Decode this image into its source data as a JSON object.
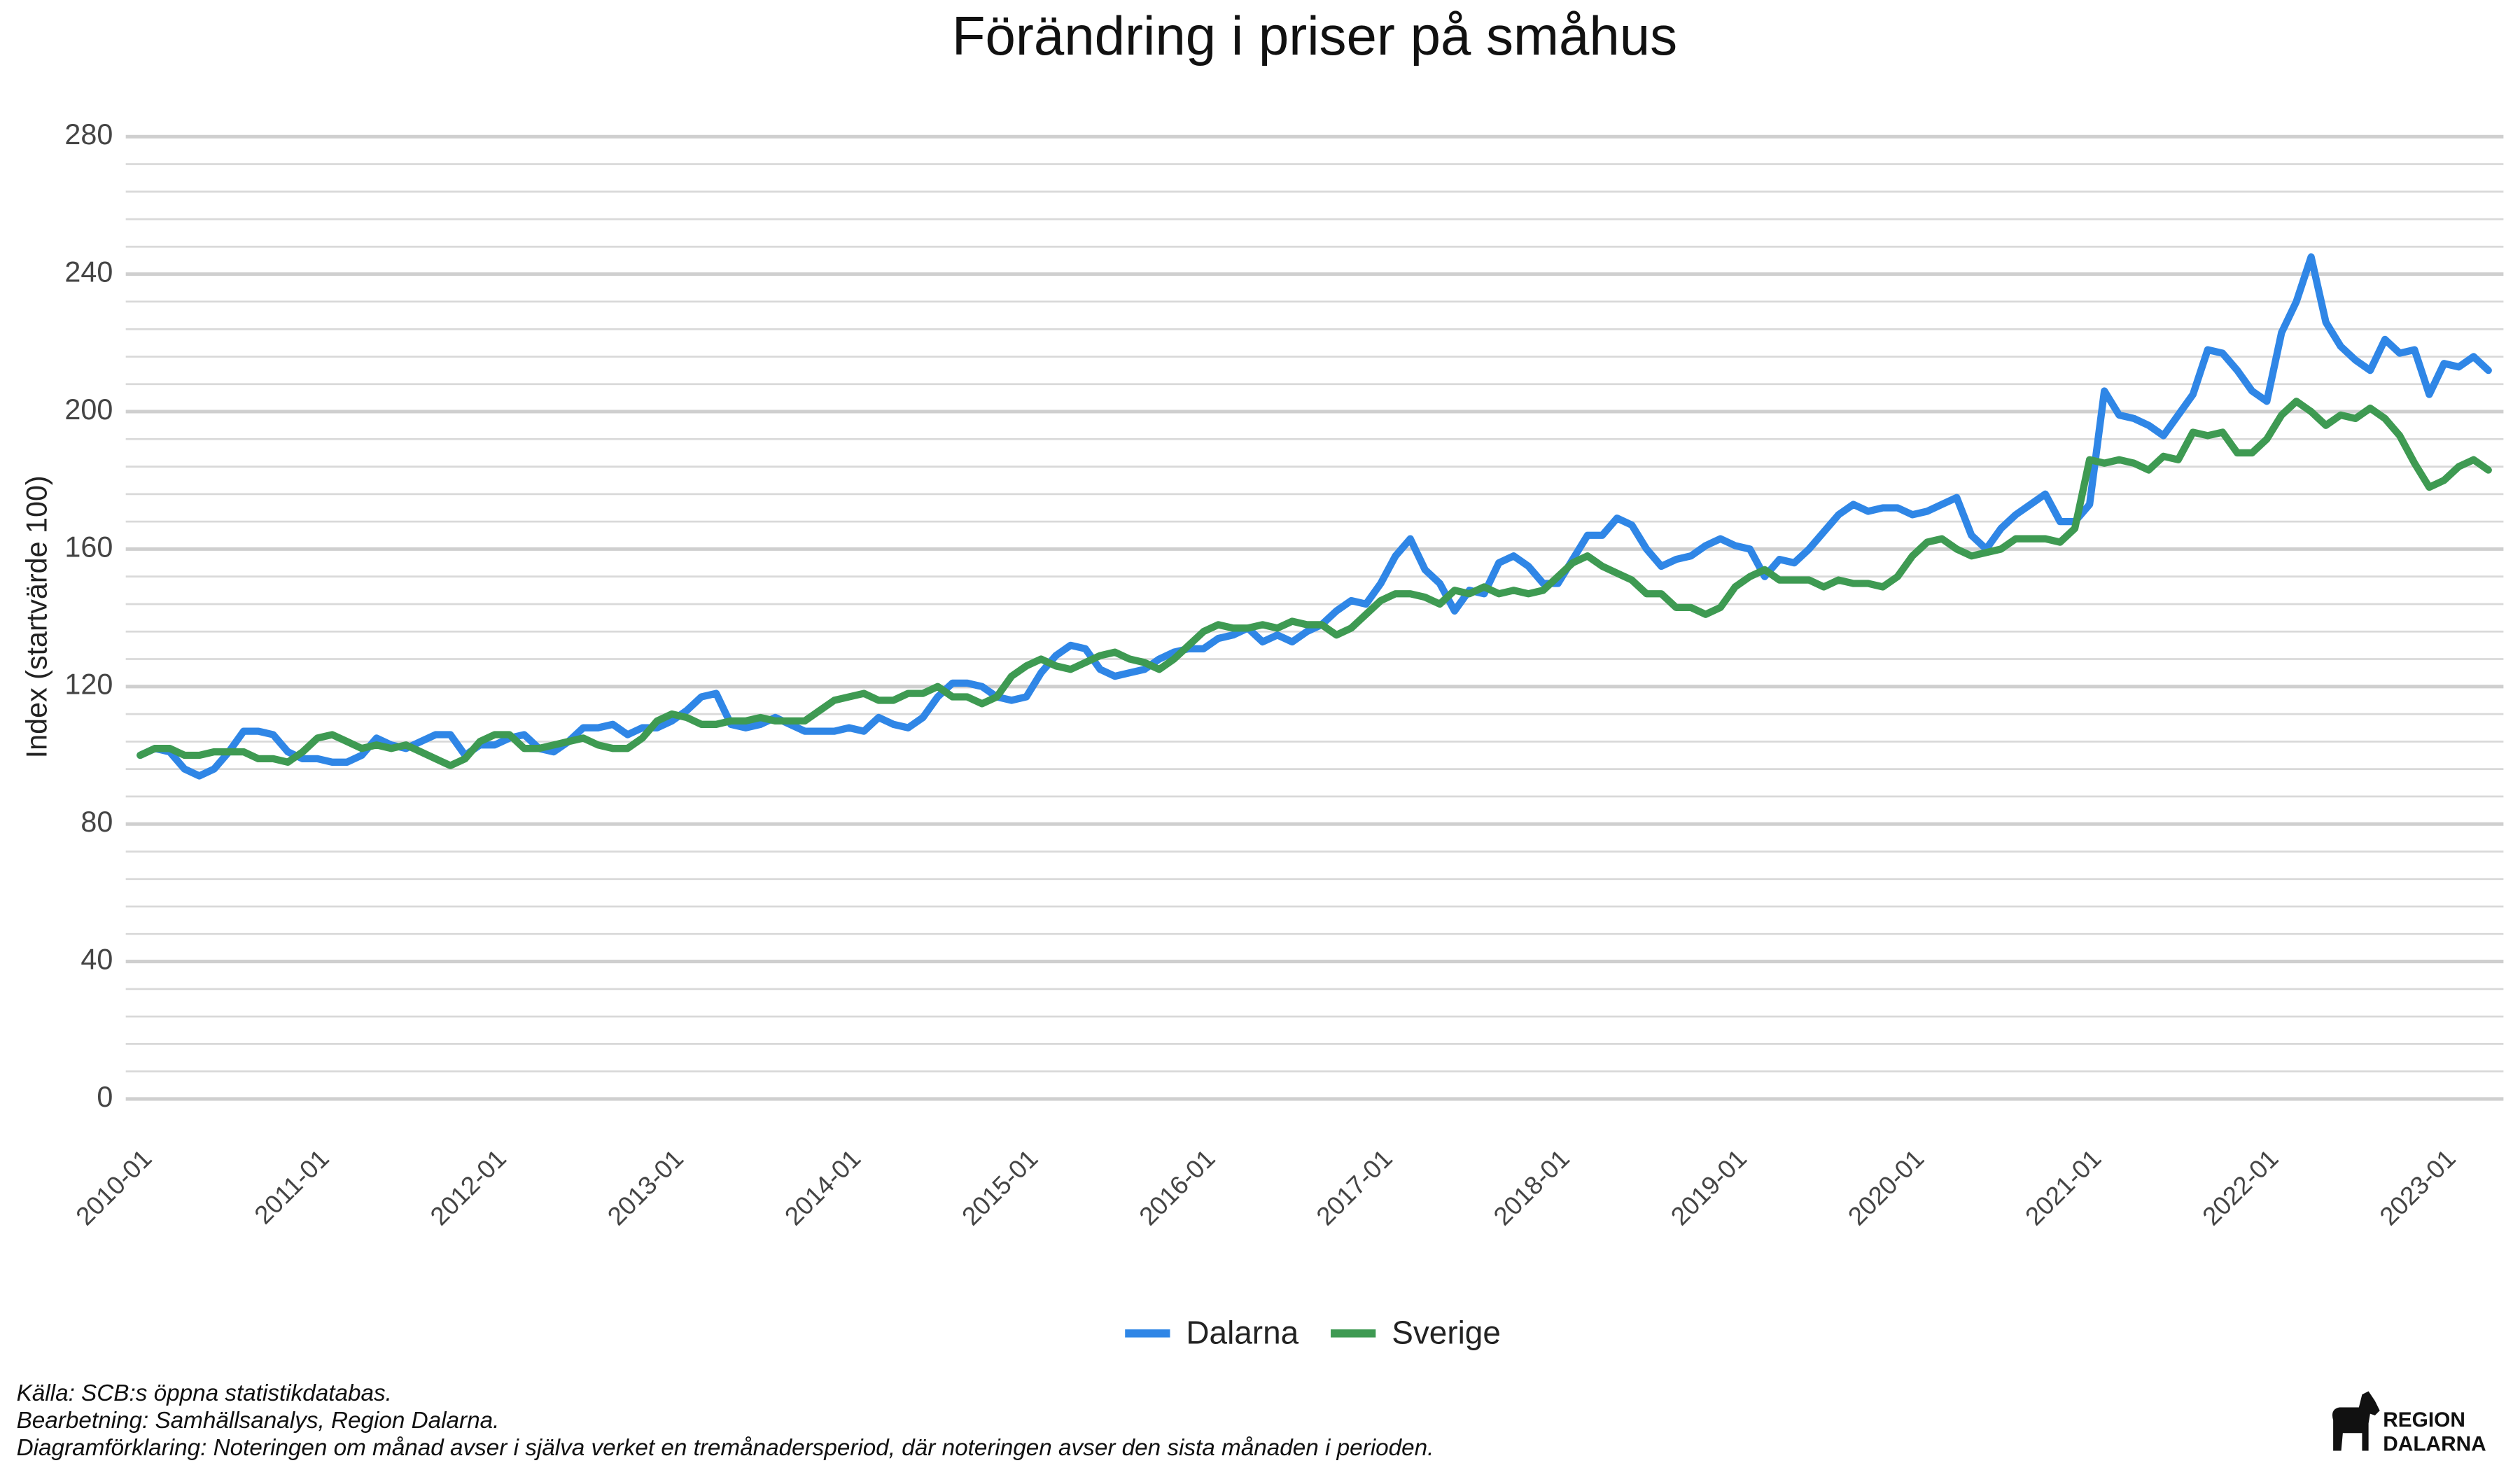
{
  "chart_data": {
    "type": "line",
    "title": "Förändring i priser på småhus",
    "y_label": "Index (startvärde 100)",
    "categories": [
      "2010-01",
      null,
      null,
      null,
      null,
      null,
      null,
      null,
      null,
      null,
      null,
      null,
      "2011-01",
      null,
      null,
      null,
      null,
      null,
      null,
      null,
      null,
      null,
      null,
      null,
      "2012-01",
      null,
      null,
      null,
      null,
      null,
      null,
      null,
      null,
      null,
      null,
      null,
      "2013-01",
      null,
      null,
      null,
      null,
      null,
      null,
      null,
      null,
      null,
      null,
      null,
      "2014-01",
      null,
      null,
      null,
      null,
      null,
      null,
      null,
      null,
      null,
      null,
      null,
      "2015-01",
      null,
      null,
      null,
      null,
      null,
      null,
      null,
      null,
      null,
      null,
      null,
      "2016-01",
      null,
      null,
      null,
      null,
      null,
      null,
      null,
      null,
      null,
      null,
      null,
      "2017-01",
      null,
      null,
      null,
      null,
      null,
      null,
      null,
      null,
      null,
      null,
      null,
      "2018-01",
      null,
      null,
      null,
      null,
      null,
      null,
      null,
      null,
      null,
      null,
      null,
      "2019-01",
      null,
      null,
      null,
      null,
      null,
      null,
      null,
      null,
      null,
      null,
      null,
      "2020-01",
      null,
      null,
      null,
      null,
      null,
      null,
      null,
      null,
      null,
      null,
      null,
      "2021-01",
      null,
      null,
      null,
      null,
      null,
      null,
      null,
      null,
      null,
      null,
      null,
      "2022-01",
      null,
      null,
      null,
      null,
      null,
      null,
      null,
      null,
      null,
      null,
      null,
      "2023-01",
      null,
      null,
      null
    ],
    "series": [
      {
        "name": "Dalarna",
        "color": "#2f86e6",
        "values": [
          100,
          102,
          101,
          96,
          94,
          96,
          101,
          107,
          107,
          106,
          101,
          99,
          99,
          98,
          98,
          100,
          105,
          103,
          102,
          104,
          106,
          106,
          100,
          103,
          103,
          105,
          106,
          102,
          101,
          104,
          108,
          108,
          109,
          106,
          108,
          108,
          110,
          113,
          117,
          118,
          109,
          108,
          109,
          111,
          109,
          107,
          107,
          107,
          108,
          107,
          111,
          109,
          108,
          111,
          117,
          121,
          121,
          120,
          117,
          116,
          117,
          124,
          129,
          132,
          131,
          125,
          123,
          124,
          125,
          128,
          130,
          131,
          131,
          134,
          135,
          137,
          133,
          135,
          133,
          136,
          138,
          142,
          145,
          144,
          150,
          158,
          163,
          154,
          150,
          142,
          148,
          147,
          156,
          158,
          155,
          150,
          150,
          157,
          164,
          164,
          169,
          167,
          160,
          155,
          157,
          158,
          161,
          163,
          161,
          160,
          152,
          157,
          156,
          160,
          165,
          170,
          173,
          171,
          172,
          172,
          170,
          171,
          173,
          175,
          164,
          160,
          166,
          170,
          173,
          176,
          168,
          168,
          173,
          206,
          199,
          198,
          196,
          193,
          199,
          205,
          218,
          217,
          212,
          206,
          203,
          223,
          232,
          245,
          226,
          219,
          215,
          212,
          221,
          217,
          218,
          205,
          214,
          213,
          216,
          212
        ]
      },
      {
        "name": "Sverige",
        "color": "#3e9a52",
        "values": [
          100,
          102,
          102,
          100,
          100,
          101,
          101,
          101,
          99,
          99,
          98,
          101,
          105,
          106,
          104,
          102,
          103,
          102,
          103,
          101,
          99,
          97,
          99,
          104,
          106,
          106,
          102,
          102,
          103,
          104,
          105,
          103,
          102,
          102,
          105,
          110,
          112,
          111,
          109,
          109,
          110,
          110,
          111,
          110,
          110,
          110,
          113,
          116,
          117,
          118,
          116,
          116,
          118,
          118,
          120,
          117,
          117,
          115,
          117,
          123,
          126,
          128,
          126,
          125,
          127,
          129,
          130,
          128,
          127,
          125,
          128,
          132,
          136,
          138,
          137,
          137,
          138,
          137,
          139,
          138,
          138,
          135,
          137,
          141,
          145,
          147,
          147,
          146,
          144,
          148,
          147,
          149,
          147,
          148,
          147,
          148,
          152,
          156,
          158,
          155,
          153,
          151,
          147,
          147,
          143,
          143,
          141,
          143,
          149,
          152,
          154,
          151,
          151,
          151,
          149,
          151,
          150,
          150,
          149,
          152,
          158,
          162,
          163,
          160,
          158,
          159,
          160,
          163,
          163,
          163,
          162,
          166,
          186,
          185,
          186,
          185,
          183,
          187,
          186,
          194,
          193,
          194,
          188,
          188,
          192,
          199,
          203,
          200,
          196,
          199,
          198,
          201,
          198,
          193,
          185,
          178,
          180,
          184,
          186,
          183
        ]
      }
    ],
    "ylim": [
      -4,
      282
    ],
    "yticks": [
      0,
      40,
      80,
      120,
      160,
      200,
      240,
      280
    ],
    "minor_yticks": [
      8,
      16,
      24,
      32,
      48,
      56,
      64,
      72,
      88,
      96,
      104,
      112,
      128,
      136,
      144,
      152,
      168,
      176,
      184,
      192,
      208,
      216,
      224,
      232,
      248,
      256,
      264,
      272
    ],
    "grid": true,
    "legend": "bottom",
    "notes": [
      "Källa: SCB:s öppna statistikdatabas.",
      "Bearbetning: Samhällsanalys, Region Dalarna.",
      "Diagramförklaring: Noteringen om månad avser i själva verket en tremånadersperiod, där noteringen avser den sista månaden i perioden."
    ],
    "logo": [
      "REGION",
      "DALARNA"
    ]
  }
}
